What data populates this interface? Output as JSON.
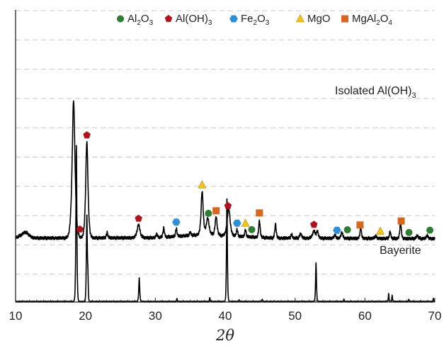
{
  "chart_data": {
    "type": "line",
    "title": "",
    "xlabel": "2θ",
    "ylabel": "",
    "xlim": [
      10,
      70
    ],
    "xticks": [
      10,
      20,
      30,
      40,
      50,
      60,
      70
    ],
    "y_ticks_shown": false,
    "grid": "horizontal dashed",
    "legend_position": "top",
    "legend": [
      {
        "name": "Al2O3",
        "base": "Al",
        "sub": "2",
        "base2": "O",
        "sub2": "3",
        "marker": "circle",
        "color": "#2e7d32"
      },
      {
        "name": "Al(OH)3",
        "base": "Al(OH)",
        "sub": "3",
        "marker": "pentagon",
        "color": "#b3121b"
      },
      {
        "name": "Fe2O3",
        "base": "Fe",
        "sub": "2",
        "base2": "O",
        "sub2": "3",
        "marker": "hexagon",
        "color": "#2f8fd6"
      },
      {
        "name": "MgO",
        "base": "MgO",
        "marker": "triangle",
        "color": "#f3c318"
      },
      {
        "name": "MgAl2O4",
        "base": "MgAl",
        "sub": "2",
        "base2": "O",
        "sub2": "4",
        "marker": "square",
        "color": "#d9661e"
      }
    ],
    "series": [
      {
        "name": "Isolated Al(OH)3",
        "label_main": "Isolated Al(OH)",
        "label_sub": "3",
        "baseline": 0.4,
        "noise": 0.006,
        "background": [
          [
            10,
            0.012
          ],
          [
            11.3,
            0.035
          ],
          [
            12.5,
            0.01
          ],
          [
            30,
            0.012
          ],
          [
            36,
            0.03
          ],
          [
            40,
            0.025
          ],
          [
            47,
            0.01
          ],
          [
            70,
            0.006
          ]
        ],
        "peaks": [
          [
            11.5,
            0.015,
            0.6
          ],
          [
            18.3,
            0.88,
            0.3
          ],
          [
            20.2,
            0.62,
            0.24
          ],
          [
            23.1,
            0.035,
            0.15
          ],
          [
            27.6,
            0.085,
            0.3
          ],
          [
            30.2,
            0.025,
            0.15
          ],
          [
            31.2,
            0.06,
            0.15
          ],
          [
            33.0,
            0.05,
            0.15
          ],
          [
            35.0,
            0.022,
            0.15
          ],
          [
            36.7,
            0.28,
            0.22
          ],
          [
            37.5,
            0.11,
            0.3
          ],
          [
            38.7,
            0.12,
            0.22
          ],
          [
            40.5,
            0.18,
            0.3
          ],
          [
            41.7,
            0.045,
            0.15
          ],
          [
            42.9,
            0.045,
            0.15
          ],
          [
            44.9,
            0.11,
            0.15
          ],
          [
            47.2,
            0.09,
            0.15
          ],
          [
            49.5,
            0.025,
            0.15
          ],
          [
            50.8,
            0.03,
            0.2
          ],
          [
            52.7,
            0.045,
            0.3
          ],
          [
            53.2,
            0.04,
            0.2
          ],
          [
            55.7,
            0.02,
            0.2
          ],
          [
            56.7,
            0.04,
            0.18
          ],
          [
            59.4,
            0.07,
            0.15
          ],
          [
            61.5,
            0.015,
            0.2
          ],
          [
            63.6,
            0.045,
            0.15
          ],
          [
            65.1,
            0.11,
            0.15
          ],
          [
            67.5,
            0.02,
            0.2
          ],
          [
            68.9,
            0.02,
            0.2
          ]
        ]
      },
      {
        "name": "Bayerite",
        "label_main": "Bayerite",
        "label_sub": "",
        "baseline": 0.0,
        "noise": 0.002,
        "background": [
          [
            10,
            0.003
          ],
          [
            70,
            0.003
          ]
        ],
        "peaks": [
          [
            18.7,
            1.0,
            0.1
          ],
          [
            20.2,
            0.55,
            0.1
          ],
          [
            20.35,
            0.14,
            0.07
          ],
          [
            27.7,
            0.15,
            0.1
          ],
          [
            33.1,
            0.02,
            0.07
          ],
          [
            37.8,
            0.025,
            0.07
          ],
          [
            40.25,
            0.67,
            0.09
          ],
          [
            42.0,
            0.01,
            0.07
          ],
          [
            45.3,
            0.015,
            0.07
          ],
          [
            53.0,
            0.25,
            0.09
          ],
          [
            57.0,
            0.015,
            0.07
          ],
          [
            63.4,
            0.05,
            0.07
          ],
          [
            63.9,
            0.04,
            0.07
          ],
          [
            66.3,
            0.015,
            0.07
          ],
          [
            69.8,
            0.02,
            0.07
          ]
        ]
      }
    ],
    "phase_markers": [
      {
        "phase": "Al(OH)3",
        "x": 19.2
      },
      {
        "phase": "Al(OH)3",
        "x": 20.2
      },
      {
        "phase": "Al(OH)3",
        "x": 27.6
      },
      {
        "phase": "Fe2O3",
        "x": 33.0
      },
      {
        "phase": "MgO",
        "x": 36.7
      },
      {
        "phase": "Al2O3",
        "x": 37.6
      },
      {
        "phase": "MgAl2O4",
        "x": 38.7
      },
      {
        "phase": "Al(OH)3",
        "x": 40.4
      },
      {
        "phase": "Fe2O3",
        "x": 41.7
      },
      {
        "phase": "MgO",
        "x": 42.9
      },
      {
        "phase": "Al2O3",
        "x": 43.8
      },
      {
        "phase": "MgAl2O4",
        "x": 44.9
      },
      {
        "phase": "Al(OH)3",
        "x": 52.7
      },
      {
        "phase": "Fe2O3",
        "x": 56.0
      },
      {
        "phase": "Al2O3",
        "x": 57.5
      },
      {
        "phase": "MgAl2O4",
        "x": 59.3
      },
      {
        "phase": "MgO",
        "x": 62.2
      },
      {
        "phase": "MgAl2O4",
        "x": 65.2
      },
      {
        "phase": "Al2O3",
        "x": 66.3
      },
      {
        "phase": "Al2O3",
        "x": 69.3
      }
    ]
  },
  "colors": {
    "line": "#000000",
    "axis": "#262626",
    "grid": "#c8c8c8"
  }
}
